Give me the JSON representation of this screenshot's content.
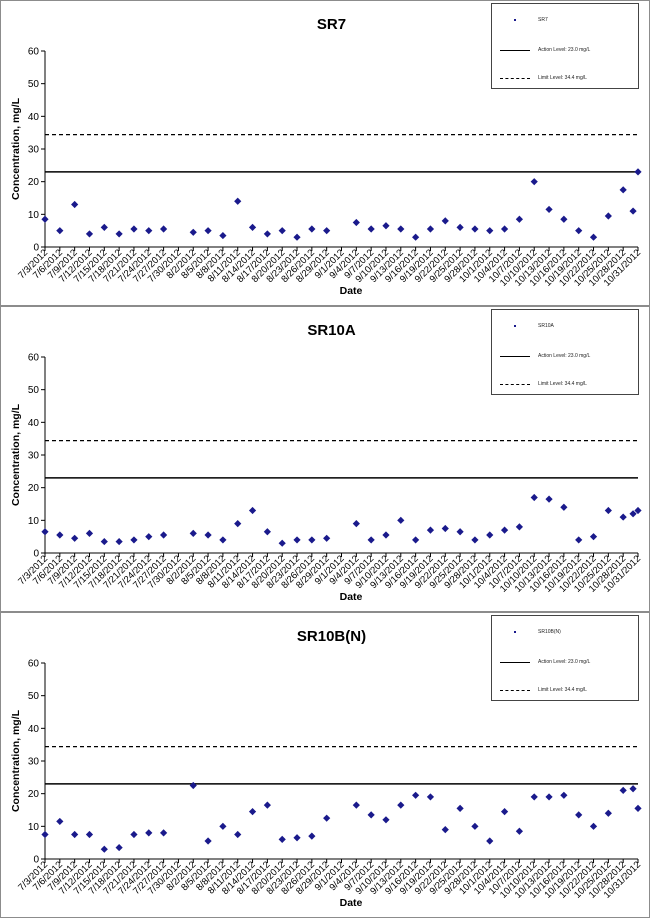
{
  "dates": [
    "7/3/2012",
    "7/6/2012",
    "7/9/2012",
    "7/12/2012",
    "7/15/2012",
    "7/18/2012",
    "7/21/2012",
    "7/24/2012",
    "7/27/2012",
    "7/30/2012",
    "8/2/2012",
    "8/5/2012",
    "8/8/2012",
    "8/11/2012",
    "8/14/2012",
    "8/17/2012",
    "8/20/2012",
    "8/23/2012",
    "8/26/2012",
    "8/29/2012",
    "9/1/2012",
    "9/4/2012",
    "9/7/2012",
    "9/10/2012",
    "9/13/2012",
    "9/16/2012",
    "9/19/2012",
    "9/22/2012",
    "9/25/2012",
    "9/28/2012",
    "10/1/2012",
    "10/4/2012",
    "10/7/2012",
    "10/10/2012",
    "10/13/2012",
    "10/16/2012",
    "10/19/2012",
    "10/22/2012",
    "10/25/2012",
    "10/28/2012",
    "10/31/2012"
  ],
  "colors": {
    "marker": "#1a1a8c",
    "action_line": "#000000",
    "limit_line": "#000000"
  },
  "chart_data": [
    {
      "type": "scatter",
      "title": "SR7",
      "xlabel": "Date",
      "ylabel": "Concentration, mg/L",
      "ylim": [
        0,
        60
      ],
      "yticks": [
        0,
        10,
        20,
        30,
        40,
        50,
        60
      ],
      "xlim": [
        "7/3/2012",
        "10/31/2012"
      ],
      "grid": false,
      "legend_position": "top-right",
      "legend": [
        "SR7",
        "Action Level: 23.0 mg/L",
        "Limit Level: 34.4 mg/L"
      ],
      "action_level": 23.0,
      "limit_level": 34.4,
      "points": [
        {
          "x": "7/3/2012",
          "y": 8.5
        },
        {
          "x": "7/6/2012",
          "y": 5
        },
        {
          "x": "7/9/2012",
          "y": 13
        },
        {
          "x": "7/12/2012",
          "y": 4
        },
        {
          "x": "7/15/2012",
          "y": 6
        },
        {
          "x": "7/18/2012",
          "y": 4
        },
        {
          "x": "7/21/2012",
          "y": 5.5
        },
        {
          "x": "7/24/2012",
          "y": 5
        },
        {
          "x": "7/27/2012",
          "y": 5.5
        },
        {
          "x": "8/2/2012",
          "y": 4.5
        },
        {
          "x": "8/5/2012",
          "y": 5
        },
        {
          "x": "8/8/2012",
          "y": 3.5
        },
        {
          "x": "8/11/2012",
          "y": 14
        },
        {
          "x": "8/14/2012",
          "y": 6
        },
        {
          "x": "8/17/2012",
          "y": 4
        },
        {
          "x": "8/20/2012",
          "y": 5
        },
        {
          "x": "8/23/2012",
          "y": 3
        },
        {
          "x": "8/26/2012",
          "y": 5.5
        },
        {
          "x": "8/29/2012",
          "y": 5
        },
        {
          "x": "9/4/2012",
          "y": 7.5
        },
        {
          "x": "9/7/2012",
          "y": 5.5
        },
        {
          "x": "9/10/2012",
          "y": 6.5
        },
        {
          "x": "9/13/2012",
          "y": 5.5
        },
        {
          "x": "9/16/2012",
          "y": 3
        },
        {
          "x": "9/19/2012",
          "y": 5.5
        },
        {
          "x": "9/22/2012",
          "y": 8
        },
        {
          "x": "9/25/2012",
          "y": 6
        },
        {
          "x": "9/28/2012",
          "y": 5.5
        },
        {
          "x": "10/1/2012",
          "y": 5
        },
        {
          "x": "10/4/2012",
          "y": 5.5
        },
        {
          "x": "10/7/2012",
          "y": 8.5
        },
        {
          "x": "10/10/2012",
          "y": 20
        },
        {
          "x": "10/13/2012",
          "y": 11.5
        },
        {
          "x": "10/16/2012",
          "y": 8.5
        },
        {
          "x": "10/19/2012",
          "y": 5
        },
        {
          "x": "10/22/2012",
          "y": 3
        },
        {
          "x": "10/25/2012",
          "y": 9.5
        },
        {
          "x": "10/28/2012",
          "y": 17.5
        },
        {
          "x": "10/30/2012",
          "y": 11
        },
        {
          "x": "10/31/2012",
          "y": 23
        }
      ]
    },
    {
      "type": "scatter",
      "title": "SR10A",
      "xlabel": "Date",
      "ylabel": "Concentration, mg/L",
      "ylim": [
        0,
        60
      ],
      "yticks": [
        0,
        10,
        20,
        30,
        40,
        50,
        60
      ],
      "xlim": [
        "7/3/2012",
        "10/31/2012"
      ],
      "grid": false,
      "legend_position": "top-right",
      "legend": [
        "SR10A",
        "Action Level: 23.0 mg/L",
        "Limit Level: 34.4 mg/L"
      ],
      "action_level": 23.0,
      "limit_level": 34.4,
      "points": [
        {
          "x": "7/3/2012",
          "y": 6.5
        },
        {
          "x": "7/6/2012",
          "y": 5.5
        },
        {
          "x": "7/9/2012",
          "y": 4.5
        },
        {
          "x": "7/12/2012",
          "y": 6
        },
        {
          "x": "7/15/2012",
          "y": 3.5
        },
        {
          "x": "7/18/2012",
          "y": 3.5
        },
        {
          "x": "7/21/2012",
          "y": 4
        },
        {
          "x": "7/24/2012",
          "y": 5
        },
        {
          "x": "7/27/2012",
          "y": 5.5
        },
        {
          "x": "8/2/2012",
          "y": 6
        },
        {
          "x": "8/5/2012",
          "y": 5.5
        },
        {
          "x": "8/8/2012",
          "y": 4
        },
        {
          "x": "8/11/2012",
          "y": 9
        },
        {
          "x": "8/14/2012",
          "y": 13
        },
        {
          "x": "8/17/2012",
          "y": 6.5
        },
        {
          "x": "8/20/2012",
          "y": 3
        },
        {
          "x": "8/23/2012",
          "y": 4
        },
        {
          "x": "8/26/2012",
          "y": 4
        },
        {
          "x": "8/29/2012",
          "y": 4.5
        },
        {
          "x": "9/4/2012",
          "y": 9
        },
        {
          "x": "9/7/2012",
          "y": 4
        },
        {
          "x": "9/10/2012",
          "y": 5.5
        },
        {
          "x": "9/13/2012",
          "y": 10
        },
        {
          "x": "9/16/2012",
          "y": 4
        },
        {
          "x": "9/19/2012",
          "y": 7
        },
        {
          "x": "9/22/2012",
          "y": 7.5
        },
        {
          "x": "9/25/2012",
          "y": 6.5
        },
        {
          "x": "9/28/2012",
          "y": 4
        },
        {
          "x": "10/1/2012",
          "y": 5.5
        },
        {
          "x": "10/4/2012",
          "y": 7
        },
        {
          "x": "10/7/2012",
          "y": 8
        },
        {
          "x": "10/10/2012",
          "y": 17
        },
        {
          "x": "10/13/2012",
          "y": 16.5
        },
        {
          "x": "10/16/2012",
          "y": 14
        },
        {
          "x": "10/19/2012",
          "y": 4
        },
        {
          "x": "10/22/2012",
          "y": 5
        },
        {
          "x": "10/25/2012",
          "y": 13
        },
        {
          "x": "10/28/2012",
          "y": 11
        },
        {
          "x": "10/30/2012",
          "y": 12
        },
        {
          "x": "10/31/2012",
          "y": 13
        }
      ]
    },
    {
      "type": "scatter",
      "title": "SR10B(N)",
      "xlabel": "Date",
      "ylabel": "Concentration, mg/L",
      "ylim": [
        0,
        60
      ],
      "yticks": [
        0,
        10,
        20,
        30,
        40,
        50,
        60
      ],
      "xlim": [
        "7/3/2012",
        "10/31/2012"
      ],
      "grid": false,
      "legend_position": "top-right",
      "legend": [
        "SR10B(N)",
        "Action Level: 23.0 mg/L",
        "Limit Level: 34.4 mg/L"
      ],
      "action_level": 23.0,
      "limit_level": 34.4,
      "points": [
        {
          "x": "7/3/2012",
          "y": 7.5
        },
        {
          "x": "7/6/2012",
          "y": 11.5
        },
        {
          "x": "7/9/2012",
          "y": 7.5
        },
        {
          "x": "7/12/2012",
          "y": 7.5
        },
        {
          "x": "7/15/2012",
          "y": 3
        },
        {
          "x": "7/18/2012",
          "y": 3.5
        },
        {
          "x": "7/21/2012",
          "y": 7.5
        },
        {
          "x": "7/24/2012",
          "y": 8
        },
        {
          "x": "7/27/2012",
          "y": 8
        },
        {
          "x": "8/2/2012",
          "y": 22.5
        },
        {
          "x": "8/5/2012",
          "y": 5.5
        },
        {
          "x": "8/8/2012",
          "y": 10
        },
        {
          "x": "8/11/2012",
          "y": 7.5
        },
        {
          "x": "8/14/2012",
          "y": 14.5
        },
        {
          "x": "8/17/2012",
          "y": 16.5
        },
        {
          "x": "8/20/2012",
          "y": 6
        },
        {
          "x": "8/23/2012",
          "y": 6.5
        },
        {
          "x": "8/26/2012",
          "y": 7
        },
        {
          "x": "8/29/2012",
          "y": 12.5
        },
        {
          "x": "9/4/2012",
          "y": 16.5
        },
        {
          "x": "9/7/2012",
          "y": 13.5
        },
        {
          "x": "9/10/2012",
          "y": 12
        },
        {
          "x": "9/13/2012",
          "y": 16.5
        },
        {
          "x": "9/16/2012",
          "y": 19.5
        },
        {
          "x": "9/19/2012",
          "y": 19
        },
        {
          "x": "9/22/2012",
          "y": 9
        },
        {
          "x": "9/25/2012",
          "y": 15.5
        },
        {
          "x": "9/28/2012",
          "y": 10
        },
        {
          "x": "10/1/2012",
          "y": 5.5
        },
        {
          "x": "10/4/2012",
          "y": 14.5
        },
        {
          "x": "10/7/2012",
          "y": 8.5
        },
        {
          "x": "10/10/2012",
          "y": 19
        },
        {
          "x": "10/13/2012",
          "y": 19
        },
        {
          "x": "10/16/2012",
          "y": 19.5
        },
        {
          "x": "10/19/2012",
          "y": 13.5
        },
        {
          "x": "10/22/2012",
          "y": 10
        },
        {
          "x": "10/25/2012",
          "y": 14
        },
        {
          "x": "10/28/2012",
          "y": 21
        },
        {
          "x": "10/30/2012",
          "y": 21.5
        },
        {
          "x": "10/31/2012",
          "y": 15.5
        }
      ]
    }
  ]
}
